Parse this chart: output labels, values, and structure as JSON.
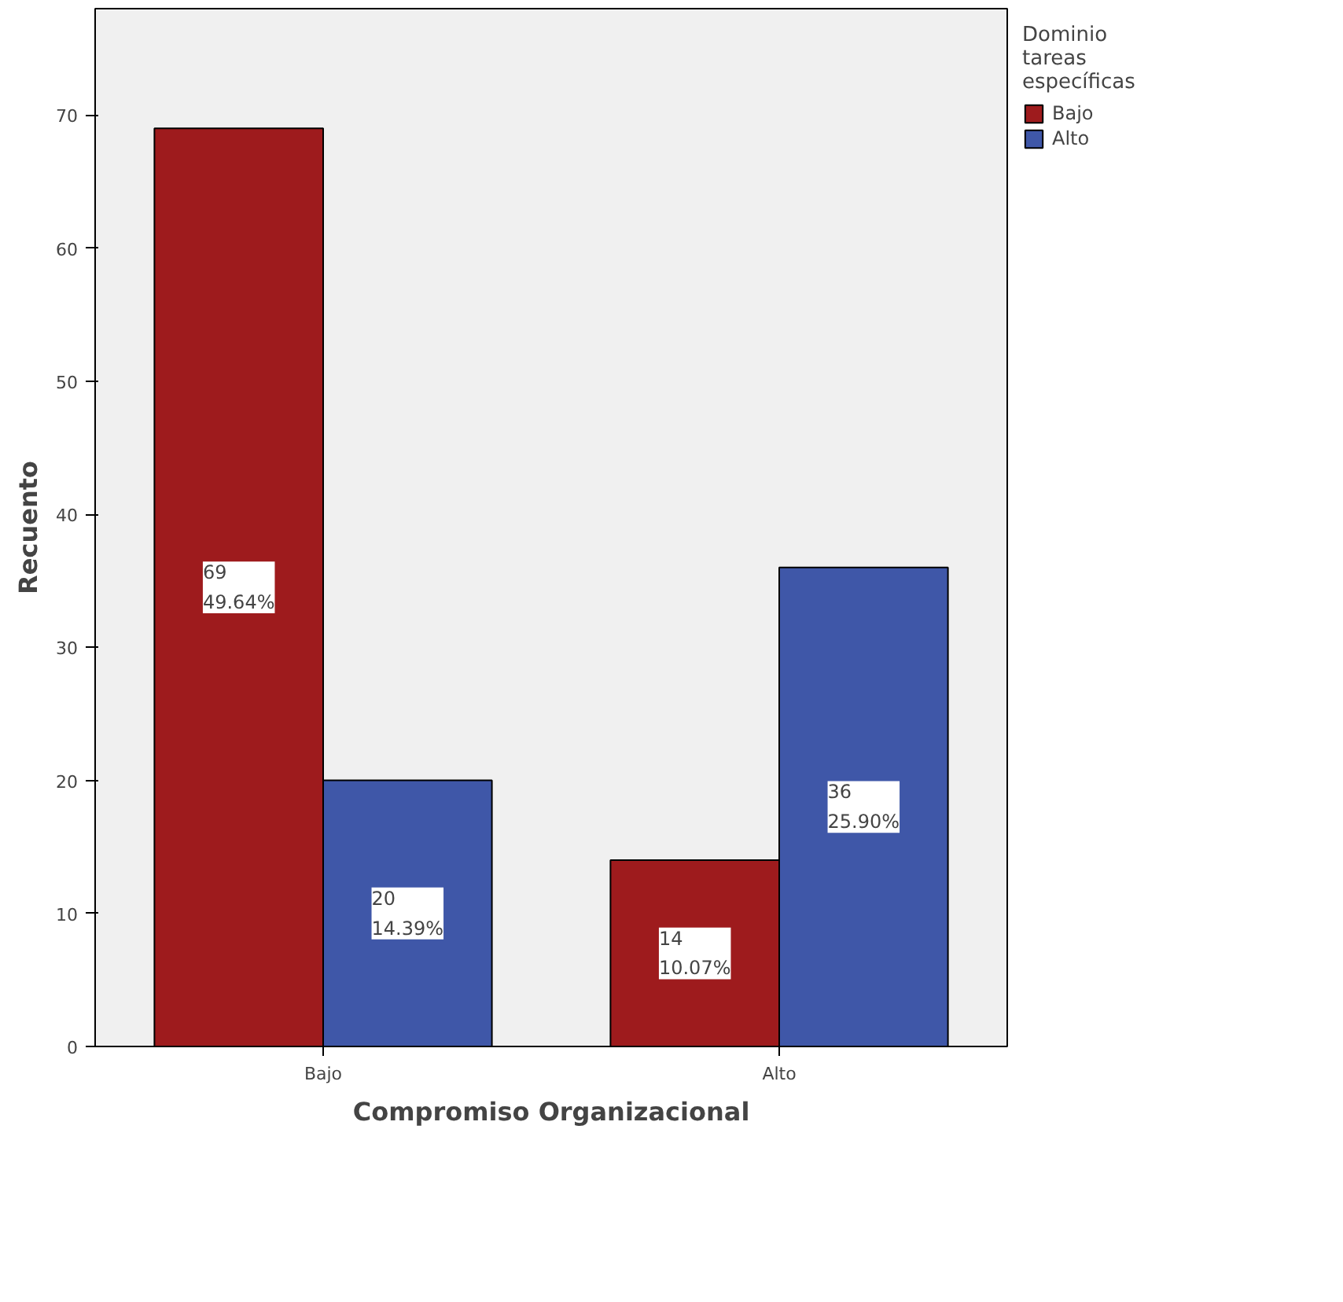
{
  "chart_data": {
    "type": "bar",
    "xlabel": "Compromiso Organizacional",
    "ylabel": "Recuento",
    "legend_title": "Dominio\ntareas\nespecíficas",
    "categories": [
      "Bajo",
      "Alto"
    ],
    "series": [
      {
        "name": "Bajo",
        "color": "#9e1b1d",
        "values": [
          69,
          14
        ],
        "value_labels": [
          "69\n49.64%",
          "14\n10.07%"
        ]
      },
      {
        "name": "Alto",
        "color": "#3f57a8",
        "values": [
          20,
          36
        ],
        "value_labels": [
          "20\n14.39%",
          "36\n25.90%"
        ]
      }
    ],
    "ylim": [
      0,
      78
    ],
    "yticks": [
      0,
      10,
      20,
      30,
      40,
      50,
      60,
      70
    ],
    "grid": false,
    "legend": "top right"
  }
}
